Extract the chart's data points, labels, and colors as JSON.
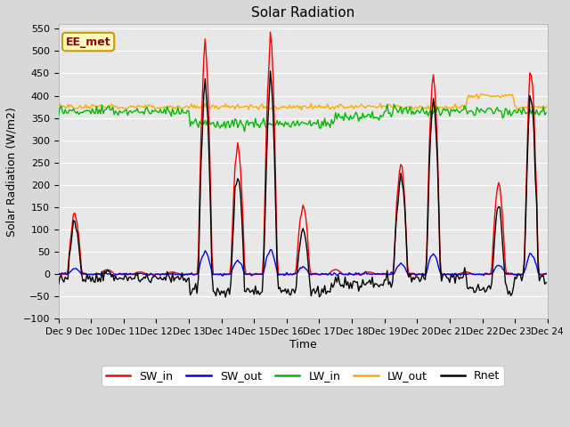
{
  "title": "Solar Radiation",
  "xlabel": "Time",
  "ylabel": "Solar Radiation (W/m2)",
  "ylim": [
    -100,
    560
  ],
  "yticks": [
    -100,
    -50,
    0,
    50,
    100,
    150,
    200,
    250,
    300,
    350,
    400,
    450,
    500,
    550
  ],
  "start_day": 9,
  "end_day": 24,
  "n_days": 15,
  "pts_per_day": 24,
  "series_colors": {
    "SW_in": "#ff0000",
    "SW_out": "#0000ff",
    "LW_in": "#00bb00",
    "LW_out": "#ffaa00",
    "Rnet": "#000000"
  },
  "legend_label": "EE_met",
  "legend_box_facecolor": "#ffffc0",
  "legend_box_edgecolor": "#cc9900",
  "fig_facecolor": "#d8d8d8",
  "ax_facecolor": "#e8e8e8",
  "grid_color": "#ffffff",
  "title_fontsize": 11,
  "axis_fontsize": 9,
  "tick_fontsize": 8,
  "linewidth": 1.0,
  "day_peak_SW": [
    130,
    10,
    5,
    5,
    500,
    285,
    520,
    150,
    10,
    5,
    250,
    445,
    5,
    200,
    450
  ],
  "lw_in_base": 365,
  "lw_out_base": 375
}
